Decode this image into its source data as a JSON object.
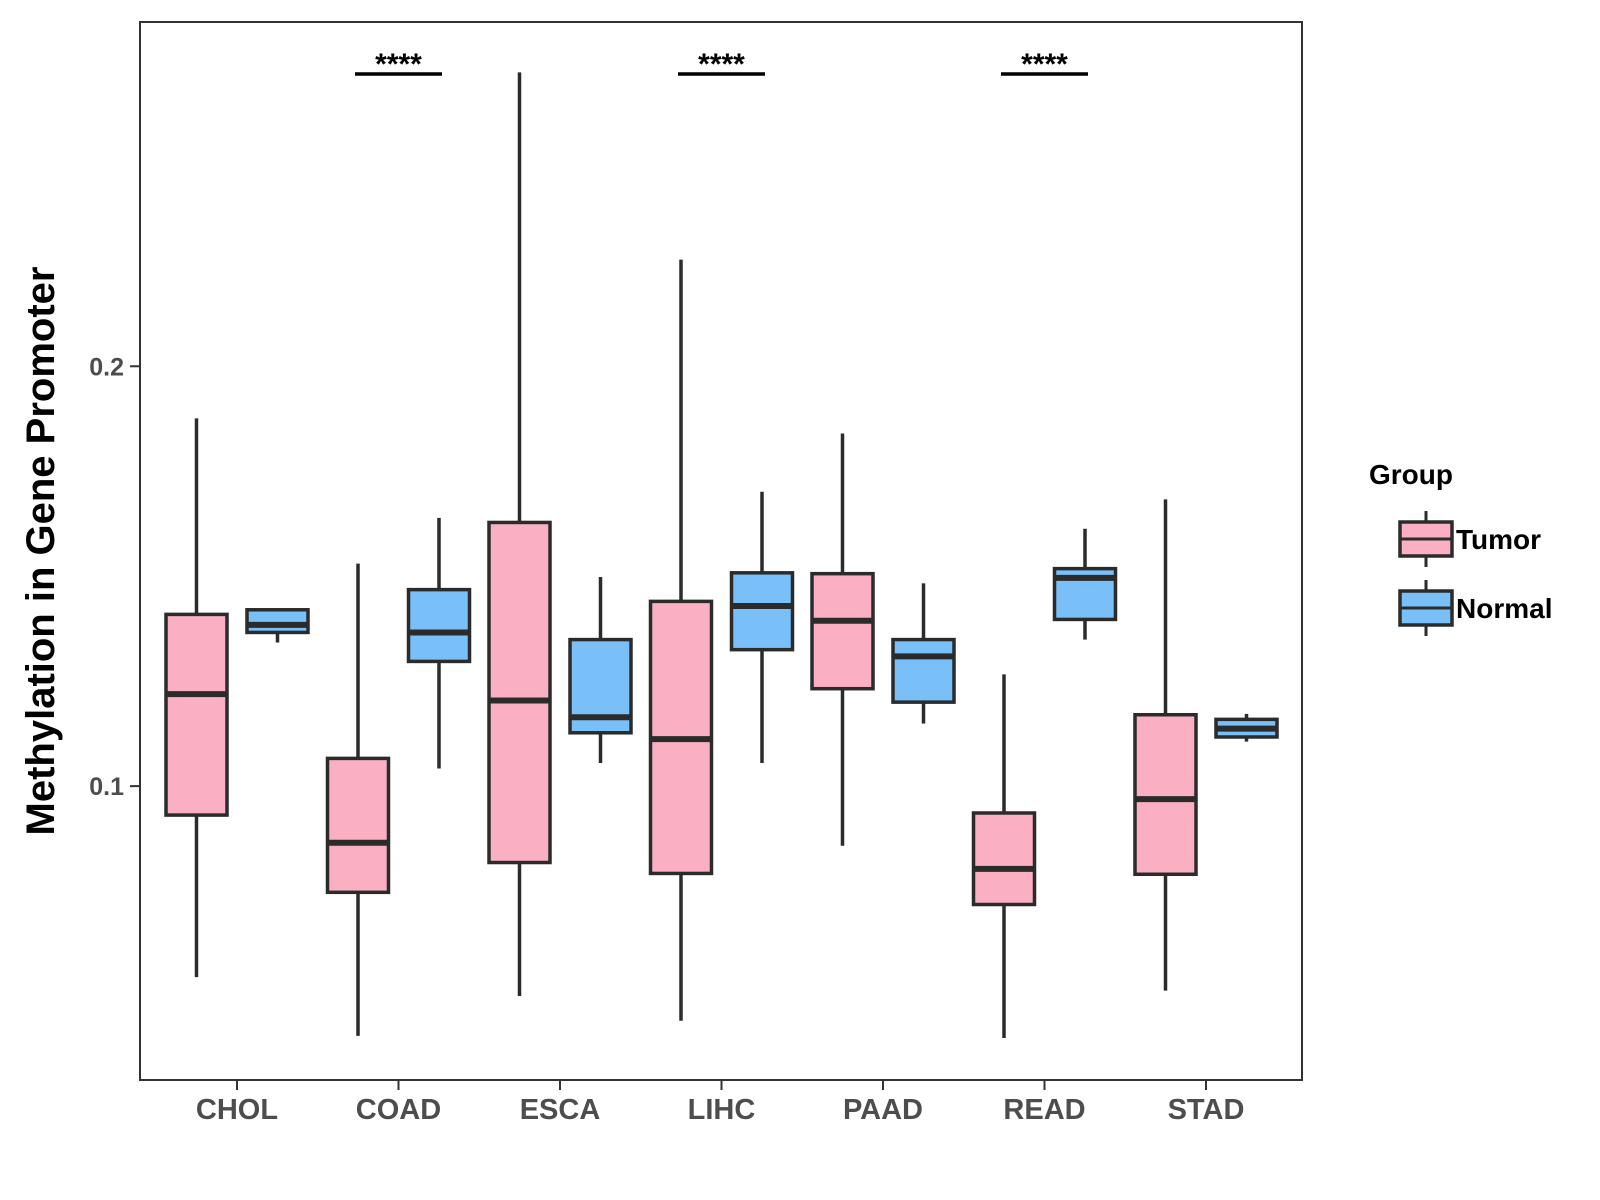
{
  "chart_data": {
    "type": "boxplot",
    "title": "",
    "xlabel": "",
    "ylabel": "Methylation in Gene Promoter",
    "ylim": [
      0.03,
      0.282
    ],
    "yticks": [
      0.1,
      0.2
    ],
    "ytick_labels": [
      "0.1",
      "0.2"
    ],
    "categories": [
      "CHOL",
      "COAD",
      "ESCA",
      "LIHC",
      "PAAD",
      "READ",
      "STAD"
    ],
    "legend": {
      "title": "Group",
      "position": "right",
      "entries": [
        {
          "name": "Tumor",
          "color": "#FBAFC2"
        },
        {
          "name": "Normal",
          "color": "#78C0F7"
        }
      ]
    },
    "series": [
      {
        "name": "Tumor",
        "color": "#FBAFC2",
        "boxes": [
          {
            "category": "CHOL",
            "whisker_low": 0.0545,
            "q1": 0.0931,
            "median": 0.1219,
            "q3": 0.1409,
            "whisker_high": 0.1876
          },
          {
            "category": "COAD",
            "whisker_low": 0.0405,
            "q1": 0.0747,
            "median": 0.0865,
            "q3": 0.1066,
            "whisker_high": 0.153
          },
          {
            "category": "ESCA",
            "whisker_low": 0.05,
            "q1": 0.0818,
            "median": 0.1204,
            "q3": 0.1628,
            "whisker_high": 0.27
          },
          {
            "category": "LIHC",
            "whisker_low": 0.0441,
            "q1": 0.0792,
            "median": 0.1112,
            "q3": 0.144,
            "whisker_high": 0.2254
          },
          {
            "category": "PAAD",
            "whisker_low": 0.0858,
            "q1": 0.1232,
            "median": 0.1394,
            "q3": 0.1506,
            "whisker_high": 0.184
          },
          {
            "category": "READ",
            "whisker_low": 0.04,
            "q1": 0.0718,
            "median": 0.0803,
            "q3": 0.0936,
            "whisker_high": 0.1266
          },
          {
            "category": "STAD",
            "whisker_low": 0.0513,
            "q1": 0.079,
            "median": 0.0969,
            "q3": 0.117,
            "whisker_high": 0.1683
          }
        ]
      },
      {
        "name": "Normal",
        "color": "#78C0F7",
        "boxes": [
          {
            "category": "CHOL",
            "whisker_low": 0.1342,
            "q1": 0.1366,
            "median": 0.1384,
            "q3": 0.142,
            "whisker_high": 0.142
          },
          {
            "category": "COAD",
            "whisker_low": 0.1042,
            "q1": 0.1297,
            "median": 0.1366,
            "q3": 0.1468,
            "whisker_high": 0.1639
          },
          {
            "category": "ESCA",
            "whisker_low": 0.1055,
            "q1": 0.1127,
            "median": 0.1164,
            "q3": 0.1349,
            "whisker_high": 0.1498
          },
          {
            "category": "LIHC",
            "whisker_low": 0.1055,
            "q1": 0.1325,
            "median": 0.1429,
            "q3": 0.1508,
            "whisker_high": 0.1701
          },
          {
            "category": "PAAD",
            "whisker_low": 0.1149,
            "q1": 0.12,
            "median": 0.1309,
            "q3": 0.1349,
            "whisker_high": 0.1483
          },
          {
            "category": "READ",
            "whisker_low": 0.1349,
            "q1": 0.1397,
            "median": 0.1496,
            "q3": 0.1518,
            "whisker_high": 0.1613
          },
          {
            "category": "STAD",
            "whisker_low": 0.1106,
            "q1": 0.1117,
            "median": 0.1137,
            "q3": 0.1159,
            "whisker_high": 0.1172
          }
        ]
      }
    ],
    "annotations": [
      {
        "category": "COAD",
        "label": "****"
      },
      {
        "category": "LIHC",
        "label": "****"
      },
      {
        "category": "READ",
        "label": "****"
      }
    ]
  }
}
